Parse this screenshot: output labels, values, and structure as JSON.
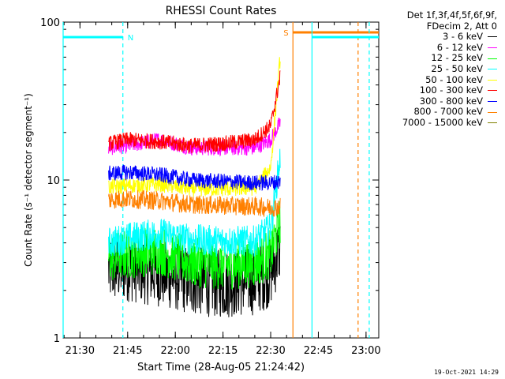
{
  "chart_data": {
    "type": "line",
    "title": "RHESSI Count Rates",
    "xlabel": "Start Time (28-Aug-05 21:24:42)",
    "ylabel": "Count Rate (s⁻¹ detector segment⁻¹)",
    "yscale": "log",
    "ylim": [
      1,
      100
    ],
    "xlim": [
      "21:24:42",
      "23:04:00"
    ],
    "x_ticks": [
      "21:30",
      "21:45",
      "22:00",
      "22:15",
      "22:30",
      "22:45",
      "23:00"
    ],
    "y_ticks": [
      "1",
      "10",
      "100"
    ],
    "grid": false,
    "legend_placement": "outside-right",
    "legend_header": [
      "Det 1f,3f,4f,5f,6f,9f,",
      "FDecim 2, Att 0"
    ],
    "series": [
      {
        "name": "3 - 6 keV",
        "color": "#000000",
        "x": [
          "21:39",
          "21:45",
          "21:55",
          "22:05",
          "22:15",
          "22:25",
          "22:30",
          "22:33"
        ],
        "y": [
          2.7,
          2.8,
          2.6,
          2.3,
          2.2,
          2.3,
          2.6,
          3.8
        ]
      },
      {
        "name": "6 - 12 keV",
        "color": "#ff00ff",
        "x": [
          "21:39",
          "21:45",
          "21:55",
          "22:05",
          "22:15",
          "22:25",
          "22:30",
          "22:33"
        ],
        "y": [
          16,
          16.5,
          18,
          16,
          16,
          16,
          18,
          23
        ]
      },
      {
        "name": "12 - 25 keV",
        "color": "#00ff00",
        "x": [
          "21:39",
          "21:45",
          "21:55",
          "22:05",
          "22:15",
          "22:25",
          "22:30",
          "22:33"
        ],
        "y": [
          3.2,
          3.4,
          3.6,
          3.0,
          2.9,
          3.0,
          3.4,
          5.5
        ]
      },
      {
        "name": "25 - 50 keV",
        "color": "#00ffff",
        "x": [
          "21:39",
          "21:45",
          "21:55",
          "22:05",
          "22:15",
          "22:25",
          "22:30",
          "22:33"
        ],
        "y": [
          4.0,
          4.3,
          4.6,
          4.2,
          4.1,
          4.1,
          5.0,
          14
        ]
      },
      {
        "name": "50 - 100 keV",
        "color": "#ffff00",
        "x": [
          "21:39",
          "21:45",
          "21:55",
          "22:05",
          "22:15",
          "22:25",
          "22:30",
          "22:33"
        ],
        "y": [
          9.0,
          9.2,
          9.4,
          8.8,
          8.8,
          8.9,
          12,
          60
        ]
      },
      {
        "name": "100 - 300 keV",
        "color": "#ff0000",
        "x": [
          "21:39",
          "21:45",
          "21:55",
          "22:05",
          "22:15",
          "22:25",
          "22:30",
          "22:33"
        ],
        "y": [
          17,
          18,
          17.5,
          16.5,
          17,
          18,
          22,
          45
        ]
      },
      {
        "name": "300 - 800 keV",
        "color": "#0000ff",
        "x": [
          "21:39",
          "21:45",
          "21:55",
          "22:05",
          "22:15",
          "22:25",
          "22:30",
          "22:33"
        ],
        "y": [
          11,
          11.2,
          10.8,
          10,
          9.8,
          9.6,
          9.6,
          9.8
        ]
      },
      {
        "name": "800 - 7000 keV",
        "color": "#ff8000",
        "x": [
          "21:39",
          "21:45",
          "21:55",
          "22:05",
          "22:15",
          "22:25",
          "22:30",
          "22:33"
        ],
        "y": [
          7.5,
          7.6,
          7.4,
          7.0,
          6.9,
          6.8,
          6.7,
          6.8
        ]
      },
      {
        "name": "7000 - 15000 keV",
        "color": "#808000",
        "x": [],
        "y": []
      }
    ],
    "annotations": [
      {
        "label": "N",
        "kind": "night",
        "color": "#00ffff",
        "bar": [
          "21:24:42",
          "21:43:30"
        ],
        "markers_solid": [
          "21:24:42"
        ],
        "markers_dashed": [
          "21:43:30"
        ]
      },
      {
        "label": "S",
        "kind": "saa",
        "color": "#ff8000",
        "bar": [
          "22:37:00",
          "23:04:00"
        ],
        "markers_solid": [
          "22:37:00"
        ],
        "markers_dashed": [
          "22:57:30"
        ]
      },
      {
        "label": "",
        "kind": "night",
        "color": "#00ffff",
        "bar": [
          "22:43:00",
          "23:04:00"
        ],
        "markers_solid": [
          "22:43:00"
        ],
        "markers_dashed": [
          "23:01:00"
        ]
      }
    ],
    "footer_timestamp": "19-Oct-2021 14:29"
  }
}
